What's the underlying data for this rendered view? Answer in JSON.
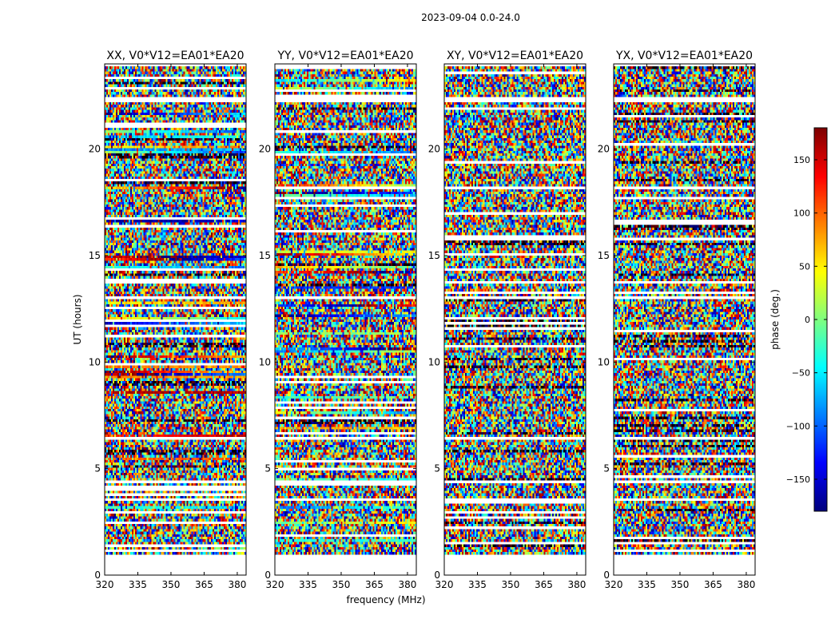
{
  "chart_data": {
    "type": "heatmap",
    "suptitle": "2023-09-04 0.0-24.0",
    "xlabel": "frequency (MHz)",
    "ylabel": "UT (hours)",
    "xlim": [
      320,
      384
    ],
    "ylim": [
      0,
      24
    ],
    "x_ticks": [
      "320",
      "335",
      "350",
      "365",
      "380"
    ],
    "x_tick_values": [
      320,
      335,
      350,
      365,
      380
    ],
    "y_ticks": [
      "0",
      "5",
      "10",
      "15",
      "20"
    ],
    "y_tick_values": [
      0,
      5,
      10,
      15,
      20
    ],
    "panels": [
      {
        "title": "XX, V0*V12=EA01*EA20"
      },
      {
        "title": "YY, V0*V12=EA01*EA20"
      },
      {
        "title": "XY, V0*V12=EA01*EA20"
      },
      {
        "title": "YX, V0*V12=EA01*EA20"
      }
    ],
    "data_ut_range": [
      0.95,
      23.9
    ],
    "flagged_ut_gaps": [
      [
        0,
        0.95
      ],
      [
        3.5,
        3.65
      ],
      [
        4.35,
        4.5
      ],
      [
        6.35,
        6.5
      ],
      [
        12.95,
        13.1
      ],
      [
        22.2,
        22.5
      ]
    ],
    "colorbar": {
      "label": "phase (deg.)",
      "range": [
        -180,
        180
      ],
      "ticks": [
        "−150",
        "−100",
        "−50",
        "0",
        "50",
        "100",
        "150"
      ],
      "tick_values": [
        -150,
        -100,
        -50,
        0,
        50,
        100,
        150
      ],
      "colormap": "jet"
    }
  }
}
